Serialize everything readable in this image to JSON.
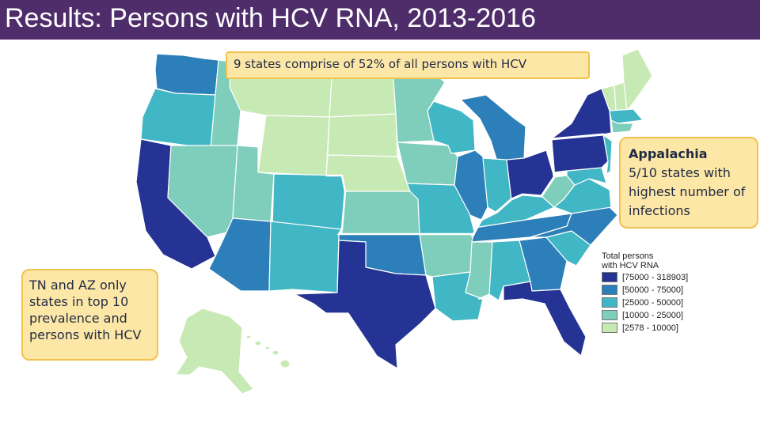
{
  "slide": {
    "title": "Results: Persons with HCV RNA, 2013-2016"
  },
  "callouts": {
    "top": "9 states comprise of 52% of all persons with HCV",
    "right_title": "Appalachia",
    "right_body": "5/10 states with highest number of infections",
    "left": "TN and AZ only states in top 10 prevalence and persons with HCV"
  },
  "legend": {
    "title_line1": "Total persons",
    "title_line2": "with HCV RNA",
    "items": [
      {
        "label": "[75000 - 318903]",
        "color": "#253494"
      },
      {
        "label": "[50000 - 75000]",
        "color": "#2c7fb8"
      },
      {
        "label": "[25000 - 50000]",
        "color": "#41b6c4"
      },
      {
        "label": "[10000 - 25000]",
        "color": "#7fcdbb"
      },
      {
        "label": "[2578 - 10000]",
        "color": "#c7e9b4"
      }
    ]
  },
  "colors": {
    "title_bar": "#4f2d6b",
    "callout_fill": "#fde7a6",
    "callout_border": "#f2c14e",
    "appalachia_outline": "#ffffff"
  }
}
